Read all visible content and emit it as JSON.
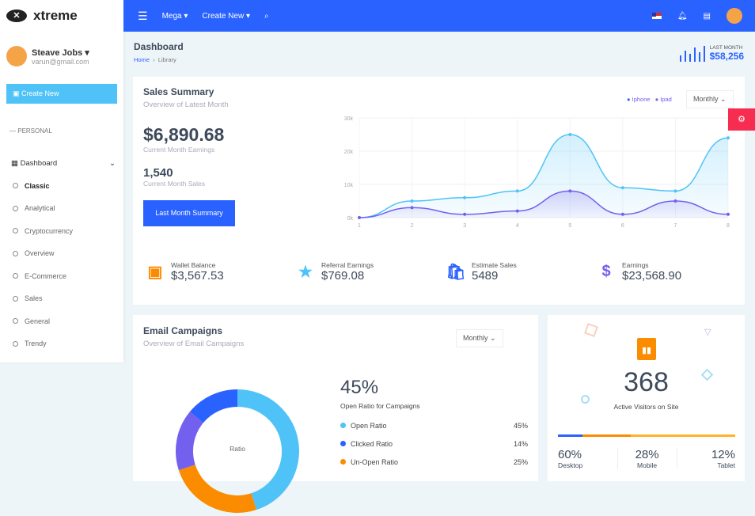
{
  "brand": {
    "name": "xtreme"
  },
  "user": {
    "name": "Steave Jobs",
    "email": "varun@gmail.com"
  },
  "sidebar": {
    "create_label": "Create New",
    "section": "PERSONAL",
    "dashboard": "Dashboard",
    "items": [
      "Classic",
      "Analytical",
      "Cryptocurrency",
      "Overview",
      "E-Commerce",
      "Sales",
      "General",
      "Trendy"
    ],
    "active": "Classic"
  },
  "topbar": {
    "mega": "Mega",
    "create_new": "Create New",
    "icons": [
      "menu-icon",
      "search-icon",
      "flag-us-icon",
      "bell-icon",
      "message-icon",
      "avatar"
    ],
    "color": "#2962ff"
  },
  "page": {
    "title": "Dashboard",
    "breadcrumb": [
      "Home",
      "Library"
    ],
    "last_month_label": "LAST MONTH",
    "last_month_value": "$58,256"
  },
  "sales": {
    "title": "Sales Summary",
    "subtitle": "Overview of Latest Month",
    "earnings": "$6,890.68",
    "earnings_label": "Current Month Earnings",
    "sales": "1,540",
    "sales_label": "Current Month Sales",
    "button": "Last Month Summary",
    "select": "Monthly"
  },
  "chart_data": {
    "type": "area",
    "x": [
      1,
      2,
      3,
      4,
      5,
      6,
      7,
      8
    ],
    "ylim": [
      0,
      30000
    ],
    "yticks": [
      "0k",
      "10k",
      "20k",
      "30k"
    ],
    "grid": true,
    "legend": "top-right",
    "series": [
      {
        "name": "Iphone",
        "color": "#4fc3f7",
        "values": [
          0,
          5000,
          6000,
          8000,
          25000,
          9000,
          8000,
          24000
        ]
      },
      {
        "name": "Ipad",
        "color": "#7460ee",
        "values": [
          0,
          3000,
          1000,
          2000,
          8000,
          1000,
          5000,
          1000
        ]
      }
    ]
  },
  "stats": [
    {
      "icon": "wallet-icon",
      "label": "Wallet Balance",
      "value": "$3,567.53",
      "color": "#fb8c00"
    },
    {
      "icon": "star-icon",
      "label": "Referral Earnings",
      "value": "$769.08",
      "color": "#4fc3f7"
    },
    {
      "icon": "shopping-bag-icon",
      "label": "Estimate Sales",
      "value": "5489",
      "color": "#2962ff"
    },
    {
      "icon": "dollar-icon",
      "label": "Earnings",
      "value": "$23,568.90",
      "color": "#7460ee"
    }
  ],
  "email": {
    "title": "Email Campaigns",
    "subtitle": "Overview of Email Campaigns",
    "select": "Monthly",
    "center": "Ratio",
    "big": "45%",
    "big_label": "Open Ratio for Campaigns",
    "legend": [
      {
        "label": "Open Ratio",
        "value": "45%",
        "color": "#4fc3f7"
      },
      {
        "label": "Clicked Ratio",
        "value": "14%",
        "color": "#2962ff"
      },
      {
        "label": "Un-Open Ratio",
        "value": "25%",
        "color": "#fb8c00"
      }
    ],
    "other_color": "#7460ee"
  },
  "visitors": {
    "value": "368",
    "label": "Active Visitors on Site",
    "split": [
      {
        "label": "Desktop",
        "value": "60%"
      },
      {
        "label": "Mobile",
        "value": "28%"
      },
      {
        "label": "Tablet",
        "value": "12%"
      }
    ]
  }
}
